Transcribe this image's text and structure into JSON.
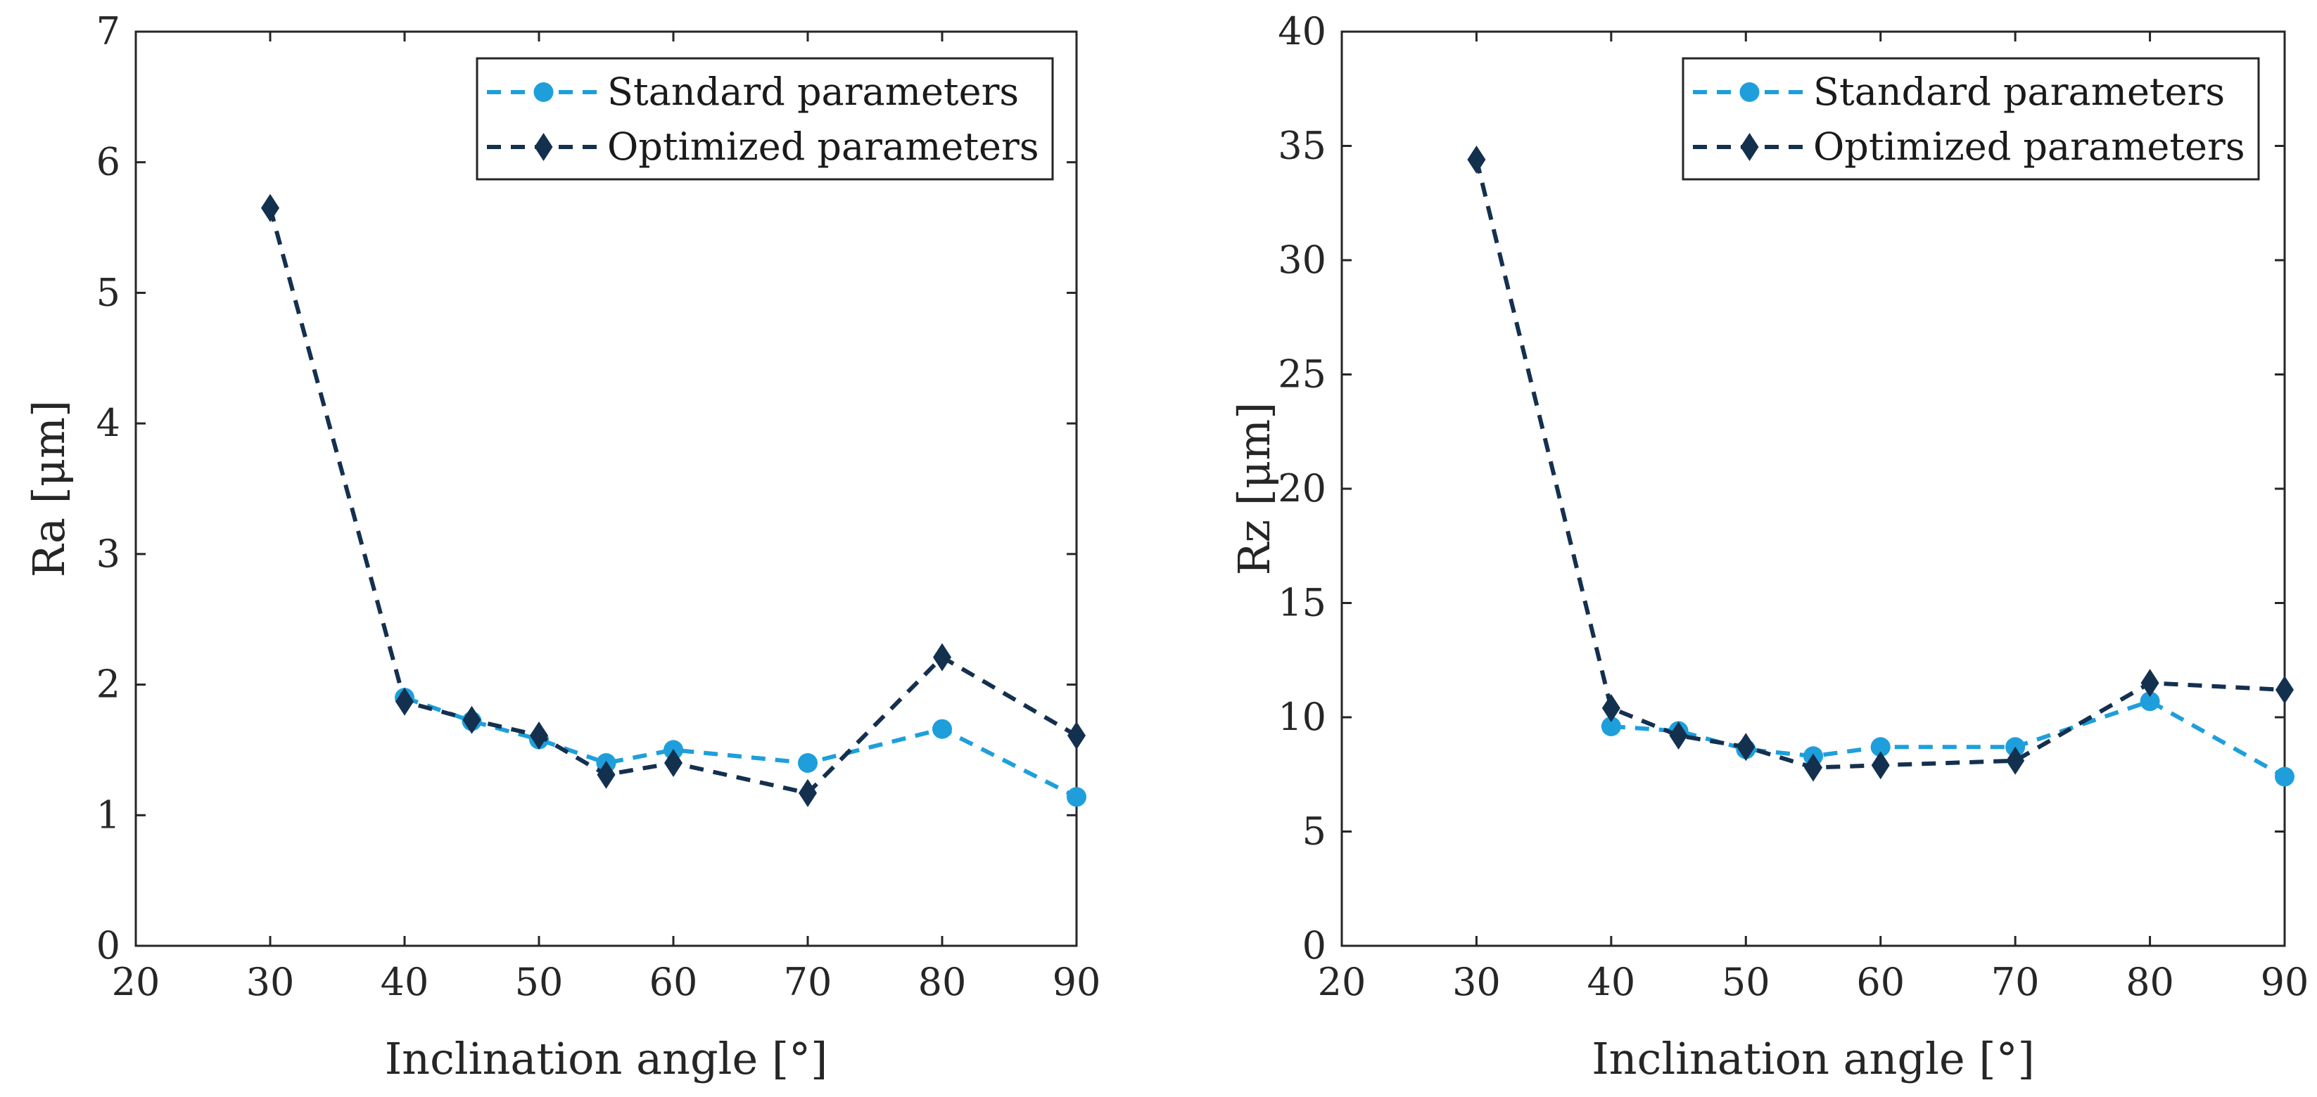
{
  "colors": {
    "standard": "#1e9fdc",
    "optimized": "#14304f",
    "axis": "#262626"
  },
  "chart_data": [
    {
      "type": "line",
      "xlabel": "Inclination angle [°]",
      "ylabel": "Ra [μm]",
      "xlim": [
        20,
        90
      ],
      "ylim": [
        0,
        7
      ],
      "xticks": [
        20,
        30,
        40,
        50,
        60,
        70,
        80,
        90
      ],
      "yticks": [
        0,
        1,
        2,
        3,
        4,
        5,
        6,
        7
      ],
      "legend_position": "top-right",
      "series": [
        {
          "name": "Standard parameters",
          "marker": "circle",
          "x": [
            40,
            45,
            50,
            55,
            60,
            70,
            80,
            90
          ],
          "y": [
            1.9,
            1.72,
            1.58,
            1.4,
            1.5,
            1.4,
            1.66,
            1.14
          ]
        },
        {
          "name": "Optimized parameters",
          "marker": "diamond",
          "x": [
            30,
            40,
            45,
            50,
            55,
            60,
            70,
            80,
            90
          ],
          "y": [
            5.65,
            1.87,
            1.73,
            1.61,
            1.31,
            1.4,
            1.17,
            2.21,
            1.61
          ]
        }
      ]
    },
    {
      "type": "line",
      "xlabel": "Inclination angle [°]",
      "ylabel": "Rz [μm]",
      "xlim": [
        20,
        90
      ],
      "ylim": [
        0,
        40
      ],
      "xticks": [
        20,
        30,
        40,
        50,
        60,
        70,
        80,
        90
      ],
      "yticks": [
        0,
        5,
        10,
        15,
        20,
        25,
        30,
        35,
        40
      ],
      "legend_position": "top-right",
      "series": [
        {
          "name": "Standard parameters",
          "marker": "circle",
          "x": [
            40,
            45,
            50,
            55,
            60,
            70,
            80,
            90
          ],
          "y": [
            9.6,
            9.4,
            8.6,
            8.3,
            8.7,
            8.7,
            10.7,
            7.4
          ]
        },
        {
          "name": "Optimized parameters",
          "marker": "diamond",
          "x": [
            30,
            40,
            45,
            50,
            55,
            60,
            70,
            80,
            90
          ],
          "y": [
            34.4,
            10.4,
            9.2,
            8.7,
            7.8,
            7.9,
            8.1,
            11.5,
            11.2
          ]
        }
      ]
    }
  ]
}
